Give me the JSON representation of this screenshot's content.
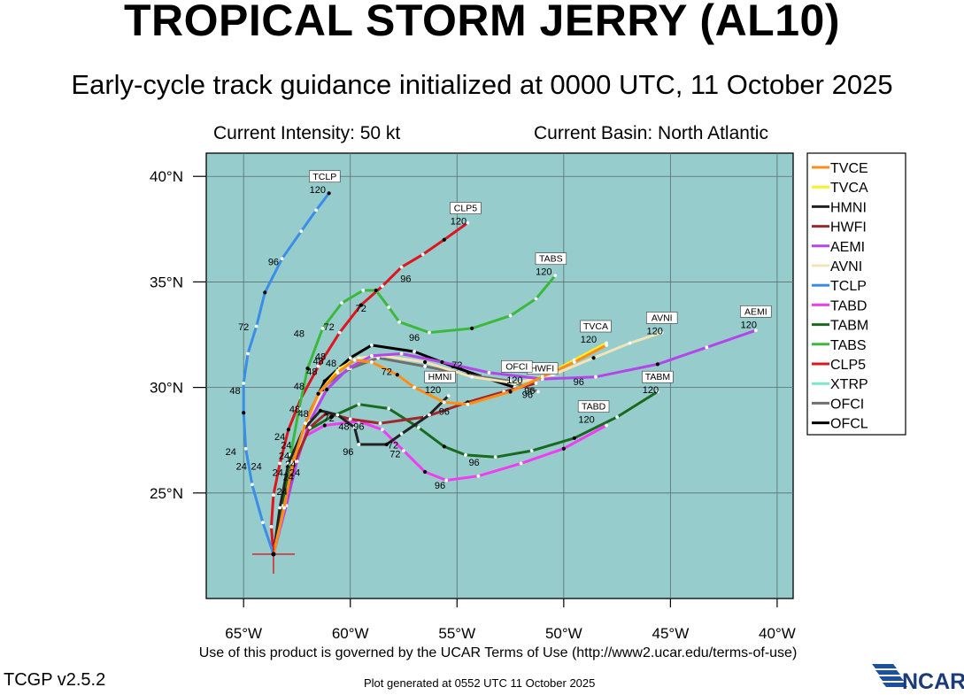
{
  "header": {
    "title": "TROPICAL STORM JERRY (AL10)",
    "subtitle": "Early-cycle track guidance initialized at 0000 UTC, 11 October 2025",
    "intensity": "Current Intensity: 50 kt",
    "basin": "Current Basin: North Atlantic"
  },
  "footer": {
    "terms": "Use of this product is governed by the UCAR Terms of Use (http://www2.ucar.edu/terms-of-use)",
    "version": "TCGP v2.5.2",
    "generated": "Plot generated at 0552 UTC   11 October 2025",
    "logo_text": "NCAR"
  },
  "colors": {
    "ocean": "#96cccc",
    "grid": "#5a6e6e"
  },
  "axes": {
    "lon_range": [
      -66.75,
      -39.25
    ],
    "lat_range": [
      20.0,
      41.1
    ],
    "lon_ticks": [
      -65,
      -60,
      -55,
      -50,
      -45,
      -40
    ],
    "lat_ticks": [
      25,
      30,
      35,
      40
    ],
    "lon_labels": [
      "65°W",
      "60°W",
      "55°W",
      "50°W",
      "45°W",
      "40°W"
    ],
    "lat_labels": [
      "25°N",
      "30°N",
      "35°N",
      "40°N"
    ]
  },
  "storm": {
    "name": "Jerry",
    "initial_position": [
      -63.6,
      22.1
    ]
  },
  "chart_data": {
    "type": "map-track",
    "x_label": "",
    "y_label": "",
    "series": [
      {
        "name": "TVCE",
        "color": "#ff8c1a",
        "points": [
          [
            -63.6,
            22.1
          ],
          [
            -63.1,
            24.3
          ],
          [
            -62.7,
            26.4
          ],
          [
            -62.1,
            28.3
          ],
          [
            -61.5,
            29.7
          ],
          [
            -60.6,
            30.7
          ],
          [
            -59.8,
            31.3
          ],
          [
            -59.0,
            31.2
          ],
          [
            -57.8,
            30.6
          ],
          [
            -57.0,
            30.0
          ],
          [
            -55.6,
            29.3
          ],
          [
            -54.5,
            29.2
          ],
          [
            -52.5,
            29.8
          ],
          [
            -51.0,
            30.5
          ],
          [
            -49.5,
            31.2
          ],
          [
            -48.0,
            32.0
          ]
        ],
        "labels": [
          {
            "text": "72",
            "lon": -58.3,
            "lat": 30.6
          },
          {
            "text": "96",
            "lon": -55.6,
            "lat": 28.7
          }
        ],
        "tag": {
          "text": "TVCA",
          "lon": -48.5,
          "lat": 32.5,
          "hr": "120"
        }
      },
      {
        "name": "TVCA",
        "color": "#ffee22",
        "points": [
          [
            -63.6,
            22.1
          ],
          [
            -63.1,
            24.3
          ],
          [
            -62.7,
            26.4
          ],
          [
            -62.1,
            28.3
          ],
          [
            -61.5,
            29.7
          ],
          [
            -60.6,
            30.8
          ],
          [
            -59.8,
            31.3
          ],
          [
            -59.0,
            31.2
          ],
          [
            -57.8,
            30.6
          ],
          [
            -57.0,
            30.0
          ],
          [
            -55.6,
            29.3
          ],
          [
            -54.5,
            29.2
          ],
          [
            -52.5,
            29.8
          ],
          [
            -51.0,
            30.5
          ],
          [
            -49.5,
            31.3
          ],
          [
            -48.0,
            32.1
          ]
        ],
        "labels": [],
        "tag": null
      },
      {
        "name": "HMNI",
        "color": "#222222",
        "points": [
          [
            -63.6,
            22.1
          ],
          [
            -63.3,
            24.3
          ],
          [
            -62.9,
            26.4
          ],
          [
            -62.2,
            28.0
          ],
          [
            -61.4,
            28.9
          ],
          [
            -60.6,
            28.7
          ],
          [
            -59.8,
            28.1
          ],
          [
            -59.6,
            27.3
          ],
          [
            -58.3,
            27.3
          ],
          [
            -57.6,
            27.8
          ],
          [
            -56.3,
            28.7
          ],
          [
            -55.4,
            29.6
          ]
        ],
        "labels": [
          {
            "text": "72",
            "lon": -58.0,
            "lat": 27.1
          },
          {
            "text": "96",
            "lon": -60.1,
            "lat": 26.8
          }
        ],
        "tag": {
          "text": "HMNI",
          "lon": -55.8,
          "lat": 30.1,
          "hr": "120"
        }
      },
      {
        "name": "HWFI",
        "color": "#a0282d",
        "points": [
          [
            -63.6,
            22.1
          ],
          [
            -63.1,
            24.4
          ],
          [
            -62.6,
            26.5
          ],
          [
            -61.9,
            28.1
          ],
          [
            -61.1,
            28.8
          ],
          [
            -60.0,
            28.5
          ],
          [
            -58.6,
            28.3
          ],
          [
            -56.5,
            28.6
          ],
          [
            -54.5,
            29.3
          ],
          [
            -52.8,
            29.8
          ],
          [
            -51.3,
            30.2
          ]
        ],
        "labels": [],
        "tag": {
          "text": "HWFI",
          "lon": -51.0,
          "lat": 30.5,
          "hr": ""
        }
      },
      {
        "name": "AEMI",
        "color": "#b445e8",
        "points": [
          [
            -63.6,
            22.1
          ],
          [
            -63.0,
            24.4
          ],
          [
            -62.5,
            26.5
          ],
          [
            -61.9,
            28.4
          ],
          [
            -61.1,
            29.9
          ],
          [
            -60.1,
            30.9
          ],
          [
            -59.0,
            31.5
          ],
          [
            -57.6,
            31.6
          ],
          [
            -55.7,
            31.2
          ],
          [
            -53.5,
            30.7
          ],
          [
            -51.0,
            30.4
          ],
          [
            -48.5,
            30.5
          ],
          [
            -45.6,
            31.1
          ],
          [
            -43.3,
            31.9
          ],
          [
            -41.0,
            32.7
          ]
        ],
        "labels": [
          {
            "text": "72",
            "lon": -55.0,
            "lat": 30.9
          },
          {
            "text": "96",
            "lon": -49.3,
            "lat": 30.1
          }
        ],
        "tag": {
          "text": "AEMI",
          "lon": -41.0,
          "lat": 33.2,
          "hr": "120"
        }
      },
      {
        "name": "AVNI",
        "color": "#f5e3b8",
        "points": [
          [
            -63.6,
            22.1
          ],
          [
            -63.1,
            24.4
          ],
          [
            -62.6,
            26.5
          ],
          [
            -62.0,
            28.4
          ],
          [
            -61.3,
            29.9
          ],
          [
            -60.5,
            30.9
          ],
          [
            -59.6,
            31.4
          ],
          [
            -58.5,
            31.5
          ],
          [
            -56.5,
            31.2
          ],
          [
            -54.3,
            30.5
          ],
          [
            -52.3,
            30.2
          ],
          [
            -50.5,
            30.6
          ],
          [
            -48.6,
            31.4
          ],
          [
            -46.9,
            32.1
          ],
          [
            -45.4,
            32.6
          ]
        ],
        "labels": [
          {
            "text": "96",
            "lon": -51.6,
            "lat": 29.7
          }
        ],
        "tag": {
          "text": "AVNI",
          "lon": -45.4,
          "lat": 32.9,
          "hr": "120"
        }
      },
      {
        "name": "TCLP",
        "color": "#3a8ee8",
        "points": [
          [
            -63.6,
            22.1
          ],
          [
            -64.1,
            23.6
          ],
          [
            -64.6,
            25.4
          ],
          [
            -64.9,
            27.1
          ],
          [
            -65.0,
            28.8
          ],
          [
            -65.0,
            30.2
          ],
          [
            -64.8,
            31.6
          ],
          [
            -64.4,
            32.9
          ],
          [
            -64.0,
            34.5
          ],
          [
            -63.2,
            36.1
          ],
          [
            -62.3,
            37.4
          ],
          [
            -61.6,
            38.4
          ],
          [
            -61.0,
            39.2
          ]
        ],
        "labels": [
          {
            "text": "24",
            "lon": -65.6,
            "lat": 26.8
          },
          {
            "text": "24",
            "lon": -65.1,
            "lat": 26.1
          },
          {
            "text": "24",
            "lon": -64.4,
            "lat": 26.1
          },
          {
            "text": "48",
            "lon": -65.4,
            "lat": 29.7
          },
          {
            "text": "72",
            "lon": -65.0,
            "lat": 32.7
          },
          {
            "text": "96",
            "lon": -63.6,
            "lat": 35.8
          }
        ],
        "tag": {
          "text": "TCLP",
          "lon": -61.2,
          "lat": 39.6,
          "hr": "120"
        }
      },
      {
        "name": "TABD",
        "color": "#f23cf2",
        "points": [
          [
            -63.6,
            22.1
          ],
          [
            -63.1,
            24.2
          ],
          [
            -62.6,
            26.3
          ],
          [
            -62.1,
            27.7
          ],
          [
            -61.2,
            28.2
          ],
          [
            -59.6,
            28.4
          ],
          [
            -58.5,
            28.0
          ],
          [
            -57.5,
            27.0
          ],
          [
            -56.5,
            26.0
          ],
          [
            -55.5,
            25.6
          ],
          [
            -54.0,
            25.8
          ],
          [
            -52.0,
            26.4
          ],
          [
            -50.0,
            27.1
          ],
          [
            -48.0,
            28.2
          ]
        ],
        "labels": [
          {
            "text": "72",
            "lon": -57.9,
            "lat": 26.7
          },
          {
            "text": "96",
            "lon": -55.8,
            "lat": 25.2
          }
        ],
        "tag": {
          "text": "TABD",
          "lon": -48.6,
          "lat": 28.7,
          "hr": "120"
        }
      },
      {
        "name": "TABM",
        "color": "#196a1e",
        "points": [
          [
            -63.6,
            22.1
          ],
          [
            -63.2,
            24.4
          ],
          [
            -62.7,
            26.5
          ],
          [
            -62.1,
            27.9
          ],
          [
            -60.9,
            28.6
          ],
          [
            -59.6,
            29.2
          ],
          [
            -58.2,
            29.0
          ],
          [
            -56.8,
            28.1
          ],
          [
            -55.6,
            27.2
          ],
          [
            -54.6,
            26.8
          ],
          [
            -53.2,
            26.7
          ],
          [
            -51.5,
            27.0
          ],
          [
            -49.5,
            27.6
          ],
          [
            -47.5,
            28.6
          ],
          [
            -45.6,
            29.8
          ]
        ],
        "labels": [
          {
            "text": "72",
            "lon": -61.0,
            "lat": 28.4
          },
          {
            "text": "96",
            "lon": -54.2,
            "lat": 26.3
          }
        ],
        "tag": {
          "text": "TABM",
          "lon": -45.6,
          "lat": 30.1,
          "hr": "120"
        }
      },
      {
        "name": "TABS",
        "color": "#3cb93c",
        "points": [
          [
            -63.6,
            22.1
          ],
          [
            -63.2,
            24.5
          ],
          [
            -62.8,
            26.8
          ],
          [
            -62.4,
            29.0
          ],
          [
            -62.0,
            30.9
          ],
          [
            -61.3,
            32.8
          ],
          [
            -60.4,
            34.0
          ],
          [
            -59.4,
            34.6
          ],
          [
            -58.8,
            34.6
          ],
          [
            -58.2,
            33.8
          ],
          [
            -57.7,
            33.1
          ],
          [
            -56.3,
            32.6
          ],
          [
            -54.3,
            32.8
          ],
          [
            -52.5,
            33.4
          ],
          [
            -51.3,
            34.2
          ],
          [
            -50.4,
            35.3
          ]
        ],
        "labels": [
          {
            "text": "48",
            "lon": -62.4,
            "lat": 32.4
          },
          {
            "text": "72",
            "lon": -59.5,
            "lat": 33.6
          },
          {
            "text": "96",
            "lon": -57.0,
            "lat": 32.2
          }
        ],
        "tag": {
          "text": "TABS",
          "lon": -50.6,
          "lat": 35.7,
          "hr": "120"
        }
      },
      {
        "name": "CLP5",
        "color": "#e0141e",
        "points": [
          [
            -63.6,
            22.1
          ],
          [
            -63.7,
            23.4
          ],
          [
            -63.6,
            24.9
          ],
          [
            -63.3,
            26.4
          ],
          [
            -62.9,
            28.0
          ],
          [
            -62.3,
            29.5
          ],
          [
            -61.5,
            31.0
          ],
          [
            -60.5,
            32.6
          ],
          [
            -59.5,
            33.9
          ],
          [
            -58.5,
            34.8
          ],
          [
            -57.6,
            35.7
          ],
          [
            -56.6,
            36.3
          ],
          [
            -55.6,
            37.0
          ],
          [
            -54.5,
            37.8
          ]
        ],
        "labels": [
          {
            "text": "48",
            "lon": -62.4,
            "lat": 29.9
          },
          {
            "text": "72",
            "lon": -61.0,
            "lat": 32.7
          },
          {
            "text": "96",
            "lon": -57.4,
            "lat": 35.0
          }
        ],
        "tag": {
          "text": "CLP5",
          "lon": -54.6,
          "lat": 38.1,
          "hr": "120"
        }
      },
      {
        "name": "XTRP",
        "color": "#7ee6c9",
        "points": [
          [
            -63.6,
            22.1
          ],
          [
            -63.3,
            23.3
          ]
        ],
        "labels": [],
        "tag": null
      },
      {
        "name": "OFCI",
        "color": "#6e6e6e",
        "points": [
          [
            -63.6,
            22.1
          ],
          [
            -63.1,
            24.4
          ],
          [
            -62.6,
            26.6
          ],
          [
            -62.0,
            28.6
          ],
          [
            -61.2,
            30.1
          ],
          [
            -60.0,
            30.9
          ],
          [
            -58.7,
            31.4
          ],
          [
            -56.5,
            31.0
          ],
          [
            -54.5,
            30.6
          ],
          [
            -52.5,
            30.3
          ],
          [
            -51.2,
            29.8
          ]
        ],
        "labels": [
          {
            "text": "120",
            "lon": -52.3,
            "lat": 30.2
          }
        ],
        "tag": {
          "text": "OFCI",
          "lon": -52.2,
          "lat": 30.6,
          "hr": ""
        }
      },
      {
        "name": "OFCL",
        "color": "#000000",
        "points": [
          [
            -63.6,
            22.1
          ],
          [
            -63.1,
            24.3
          ],
          [
            -62.6,
            26.6
          ],
          [
            -62.0,
            28.6
          ],
          [
            -61.2,
            30.3
          ],
          [
            -60.0,
            31.4
          ],
          [
            -59.0,
            32.0
          ],
          [
            -57.0,
            31.7
          ],
          [
            -55.2,
            31.0
          ],
          [
            -53.8,
            30.5
          ],
          [
            -52.3,
            30.0
          ]
        ],
        "labels": [],
        "tag": null
      }
    ],
    "cluster_labels": [
      {
        "text": "24",
        "lon": -63.3,
        "lat": 27.5
      },
      {
        "text": "24",
        "lon": -63.0,
        "lat": 27.1
      },
      {
        "text": "24",
        "lon": -63.1,
        "lat": 26.6
      },
      {
        "text": "24",
        "lon": -62.8,
        "lat": 26.2
      },
      {
        "text": "24",
        "lon": -63.4,
        "lat": 25.8
      },
      {
        "text": "24",
        "lon": -62.9,
        "lat": 25.6
      },
      {
        "text": "24",
        "lon": -62.6,
        "lat": 25.8
      },
      {
        "text": "24",
        "lon": -63.2,
        "lat": 24.9
      },
      {
        "text": "48",
        "lon": -62.6,
        "lat": 28.8
      },
      {
        "text": "48",
        "lon": -62.2,
        "lat": 28.6
      },
      {
        "text": "48",
        "lon": -61.8,
        "lat": 30.6
      },
      {
        "text": "48",
        "lon": -61.5,
        "lat": 31.1
      },
      {
        "text": "48",
        "lon": -61.4,
        "lat": 31.3
      },
      {
        "text": "48",
        "lon": -60.9,
        "lat": 31.0
      },
      {
        "text": "48",
        "lon": -60.3,
        "lat": 28.0
      },
      {
        "text": "96",
        "lon": -59.6,
        "lat": 28.0
      },
      {
        "text": "96",
        "lon": -51.7,
        "lat": 29.5
      }
    ]
  }
}
